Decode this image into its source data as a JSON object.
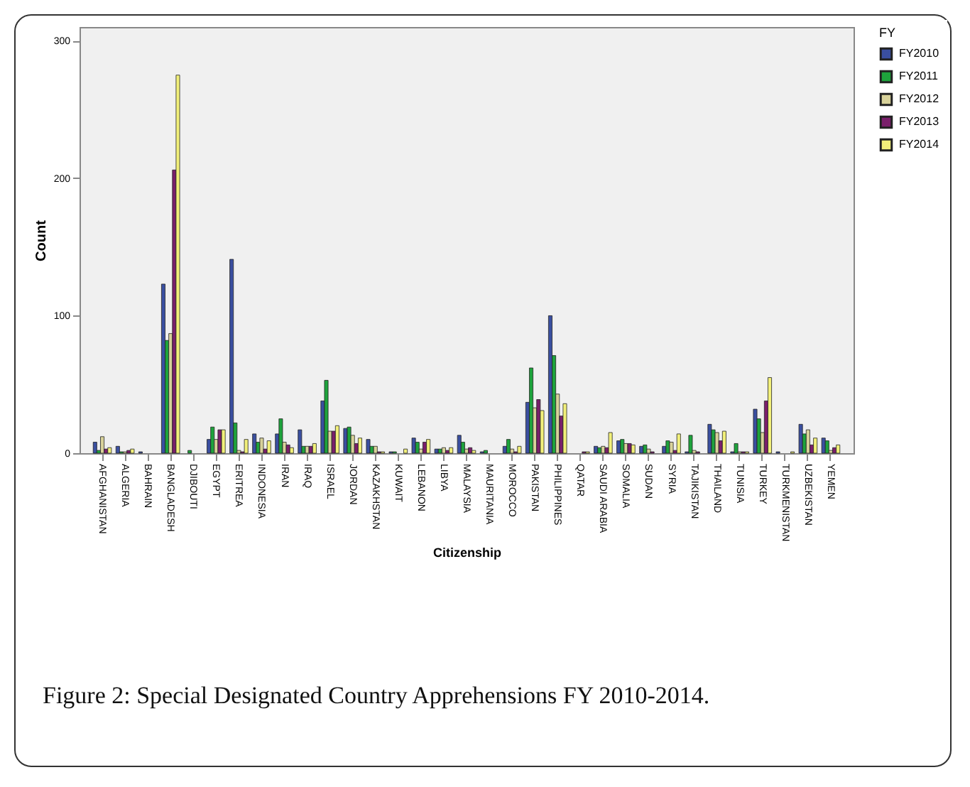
{
  "chart_data": {
    "type": "bar",
    "xlabel": "Citizenship",
    "ylabel": "Count",
    "legend_title": "FY",
    "legend": "top right",
    "grid": false,
    "categories": [
      "AFGHANISTAN",
      "ALGERIA",
      "BAHRAIN",
      "BANGLADESH",
      "DJIBOUTI",
      "EGYPT",
      "ERITREA",
      "INDONESIA",
      "IRAN",
      "IRAQ",
      "ISRAEL",
      "JORDAN",
      "KAZAKHSTAN",
      "KUWAIT",
      "LEBANON",
      "LIBYA",
      "MALAYSIA",
      "MAURITANIA",
      "MOROCCO",
      "PAKISTAN",
      "PHILIPPINES",
      "QATAR",
      "SAUDI ARABIA",
      "SOMALIA",
      "SUDAN",
      "SYRIA",
      "TAJIKISTAN",
      "THAILAND",
      "TUNISIA",
      "TURKEY",
      "TURKMENISTAN",
      "UZBEKISTAN",
      "YEMEN"
    ],
    "series": [
      {
        "name": "FY2010",
        "color": "#3a4fa0",
        "values": [
          8,
          5,
          1,
          123,
          0,
          10,
          141,
          14,
          14,
          17,
          38,
          18,
          10,
          1,
          11,
          3,
          13,
          1,
          5,
          37,
          100,
          0,
          5,
          9,
          5,
          5,
          1,
          21,
          1,
          32,
          1,
          21,
          11
        ]
      },
      {
        "name": "FY2011",
        "color": "#1ea33c",
        "values": [
          2,
          1,
          0,
          82,
          2,
          19,
          22,
          8,
          25,
          5,
          53,
          19,
          5,
          1,
          8,
          3,
          8,
          2,
          10,
          62,
          71,
          0,
          4,
          10,
          6,
          9,
          13,
          17,
          7,
          25,
          0,
          14,
          9
        ]
      },
      {
        "name": "FY2012",
        "color": "#d8d29a",
        "values": [
          12,
          1,
          0,
          87,
          0,
          10,
          2,
          11,
          8,
          5,
          16,
          13,
          5,
          0,
          3,
          4,
          3,
          0,
          3,
          33,
          43,
          0,
          5,
          7,
          3,
          8,
          2,
          15,
          1,
          15,
          0,
          17,
          2
        ]
      },
      {
        "name": "FY2013",
        "color": "#7a1f6b",
        "values": [
          3,
          2,
          0,
          206,
          0,
          17,
          1,
          3,
          6,
          5,
          16,
          7,
          1,
          0,
          8,
          2,
          4,
          0,
          1,
          39,
          27,
          1,
          4,
          7,
          1,
          2,
          1,
          9,
          1,
          38,
          0,
          6,
          4
        ]
      },
      {
        "name": "FY2014",
        "color": "#f2f07a",
        "values": [
          4,
          3,
          0,
          275,
          0,
          17,
          10,
          9,
          4,
          7,
          20,
          11,
          1,
          3,
          10,
          4,
          2,
          0,
          5,
          31,
          36,
          1,
          15,
          6,
          0,
          14,
          0,
          16,
          1,
          55,
          1,
          11,
          6
        ]
      }
    ],
    "ylim": [
      0,
      310
    ],
    "yticks": [
      0,
      100,
      200,
      300
    ],
    "annotations": [
      "Figure 2: Special Designated Country Apprehensions FY 2010-2014."
    ]
  }
}
